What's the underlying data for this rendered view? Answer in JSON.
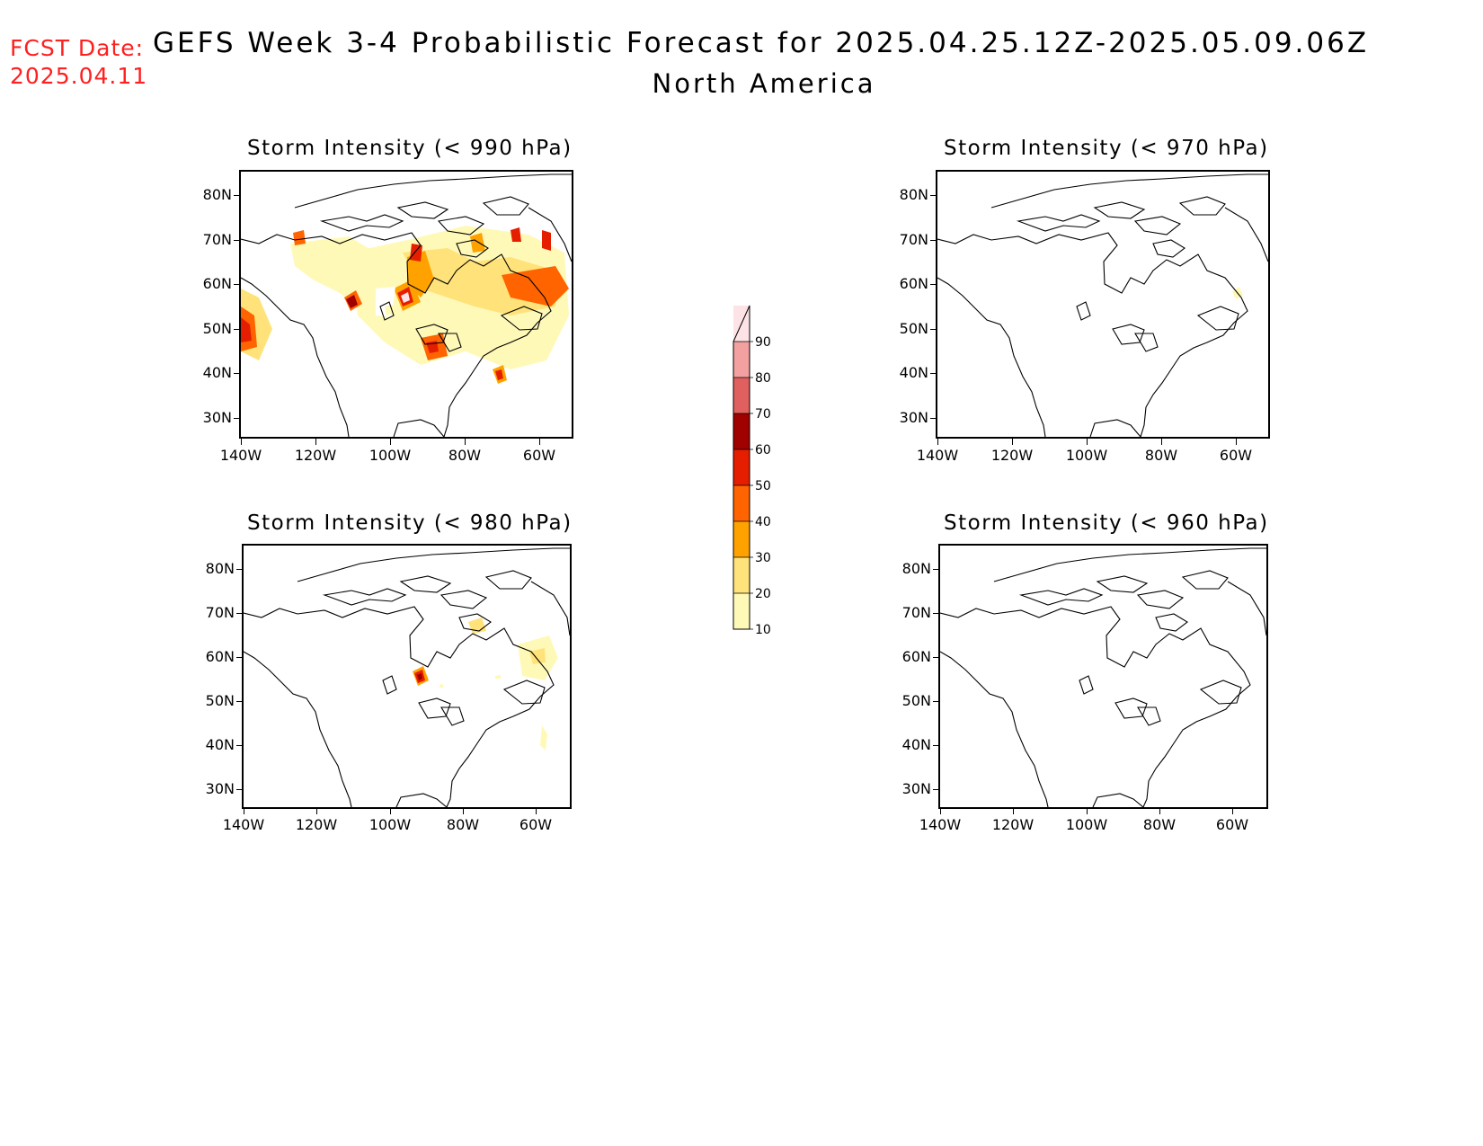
{
  "header": {
    "fcst_label": "FCST Date:",
    "fcst_date": "2025.04.11",
    "title": "GEFS Week 3-4 Probabilistic Forecast for 2025.04.25.12Z-2025.05.09.06Z",
    "subtitle": "North America"
  },
  "panels": [
    {
      "title": "Storm Intensity (< 990 hPa)"
    },
    {
      "title": "Storm Intensity (< 970 hPa)"
    },
    {
      "title": "Storm Intensity (< 980 hPa)"
    },
    {
      "title": "Storm Intensity (< 960 hPa)"
    }
  ],
  "axes": {
    "lat_labels": [
      "80N",
      "70N",
      "60N",
      "50N",
      "40N",
      "30N"
    ],
    "lon_labels": [
      "140W",
      "120W",
      "100W",
      "80W",
      "60W"
    ]
  },
  "colorbar": {
    "levels": [
      "10",
      "20",
      "30",
      "40",
      "50",
      "60",
      "70",
      "80",
      "90"
    ],
    "colors": [
      "#fff9b8",
      "#ffe37a",
      "#ffa200",
      "#ff6400",
      "#e61e00",
      "#a00000",
      "#e06060",
      "#f2a0a0",
      "#fde2e6"
    ]
  }
}
